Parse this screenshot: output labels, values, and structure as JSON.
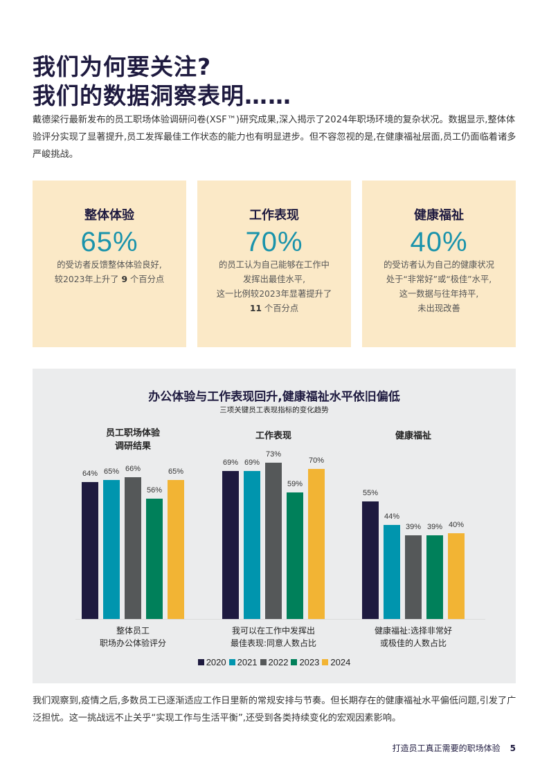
{
  "page": {
    "title_line1": "我们为何要关注?",
    "title_line2": "我们的数据洞察表明……",
    "intro": "戴德梁行最新发布的员工职场体验调研问卷(XSF™)研究成果,深入揭示了2024年职场环境的复杂状况。数据显示,整体体验评分实现了显著提升,员工发挥最佳工作状态的能力也有明显进步。但不容忽视的是,在健康福祉层面,员工仍面临着诸多严峻挑战。",
    "outro": "我们观察到,疫情之后,多数员工已逐渐适应工作日里新的常规安排与节奏。但长期存在的健康福祉水平偏低问题,引发了广泛担忧。这一挑战远不止关乎“实现工作与生活平衡”,还受到各类持续变化的宏观因素影响。"
  },
  "cards": [
    {
      "title": "整体体验",
      "value": "65%",
      "desc_lines": [
        "的受访者反馈整体体验良好,",
        "较2023年上升了",
        "9",
        "个百分点"
      ]
    },
    {
      "title": "工作表现",
      "value": "70%",
      "desc_lines": [
        "的员工认为自己能够在工作中",
        "发挥出最佳水平,",
        "这一比例较2023年显著提升了",
        "11",
        "个百分点"
      ]
    },
    {
      "title": "健康福祉",
      "value": "40%",
      "desc_lines": [
        "的受访者认为自己的健康状况",
        "处于“非常好”或“极佳”水平,",
        "这一数据与往年持平,",
        "未出现改善"
      ]
    }
  ],
  "chart_data": {
    "type": "bar",
    "title": "办公体验与工作表现回升,健康福祉水平依旧偏低",
    "subtitle": "三项关键员工表现指标的变化趋势",
    "group_titles": [
      "员工职场体验\n调研结果",
      "工作表现",
      "健康福祉"
    ],
    "categories": [
      "整体员工\n职场办公体验评分",
      "我可以在工作中发挥出\n最佳表现:同意人数占比",
      "健康福祉:选择非常好\n或极佳的人数占比"
    ],
    "series": [
      {
        "name": "2020",
        "color": "#1e1a3f",
        "values": [
          64,
          69,
          55
        ]
      },
      {
        "name": "2021",
        "color": "#0095ae",
        "values": [
          65,
          69,
          44
        ]
      },
      {
        "name": "2022",
        "color": "#555859",
        "values": [
          66,
          73,
          39
        ]
      },
      {
        "name": "2023",
        "color": "#00805a",
        "values": [
          56,
          59,
          39
        ]
      },
      {
        "name": "2024",
        "color": "#f2b434",
        "values": [
          65,
          70,
          40
        ]
      }
    ],
    "ylim": [
      0,
      100
    ],
    "grid": false,
    "legend_position": "bottom",
    "value_suffix": "%"
  },
  "footer": {
    "text": "打造员工真正需要的职场体验",
    "page_number": "5"
  }
}
